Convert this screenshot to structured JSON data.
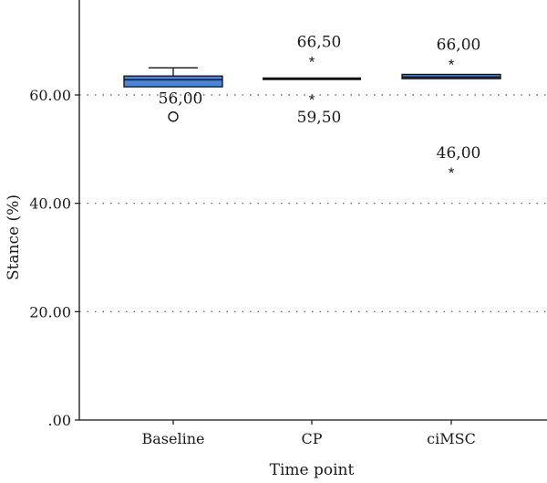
{
  "chart_data": {
    "type": "boxplot",
    "title": "",
    "xlabel": "Time point",
    "ylabel": "Stance (%)",
    "ylim": [
      0,
      80
    ],
    "y_ticks": [
      {
        "value": 0,
        "label": ".00"
      },
      {
        "value": 20,
        "label": "20.00"
      },
      {
        "value": 40,
        "label": "40.00"
      },
      {
        "value": 60,
        "label": "60.00"
      }
    ],
    "grid": "horizontal dotted",
    "categories": [
      "Baseline",
      "CP",
      "ciMSC"
    ],
    "boxes": [
      {
        "category": "Baseline",
        "whisker_low": 61.5,
        "q1": 61.5,
        "median": 62.8,
        "q3": 63.5,
        "whisker_high": 65.0
      },
      {
        "category": "CP",
        "whisker_low": 63.0,
        "q1": 63.0,
        "median": 63.0,
        "q3": 63.0,
        "whisker_high": 63.0
      },
      {
        "category": "ciMSC",
        "whisker_low": 63.0,
        "q1": 63.0,
        "median": 63.3,
        "q3": 63.8,
        "whisker_high": 63.8
      }
    ],
    "outliers": [
      {
        "category": "Baseline",
        "value": 56.0,
        "label": "56,00",
        "marker": "circle"
      },
      {
        "category": "CP",
        "value": 66.5,
        "label": "66,50",
        "marker": "asterisk"
      },
      {
        "category": "CP",
        "value": 59.5,
        "label": "59,50",
        "marker": "asterisk"
      },
      {
        "category": "ciMSC",
        "value": 66.0,
        "label": "66,00",
        "marker": "asterisk"
      },
      {
        "category": "ciMSC",
        "value": 46.0,
        "label": "46,00",
        "marker": "asterisk"
      }
    ],
    "box_color": "#4a86d4",
    "box_stroke": "#111111"
  }
}
